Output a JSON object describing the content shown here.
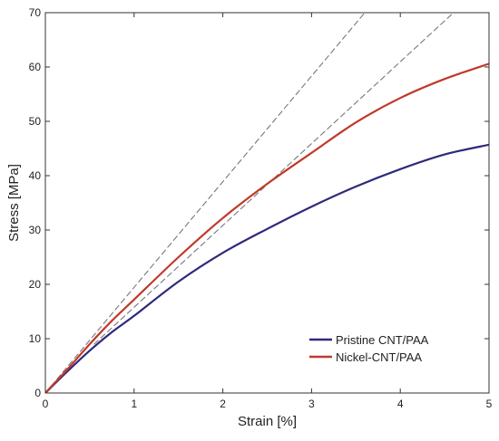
{
  "chart_data": {
    "type": "line",
    "title": "",
    "xlabel": "Strain [%]",
    "ylabel": "Stress [MPa]",
    "xlim": [
      0,
      5
    ],
    "ylim": [
      0,
      70
    ],
    "xticks": [
      0,
      1,
      2,
      3,
      4,
      5
    ],
    "yticks": [
      0,
      10,
      20,
      30,
      40,
      50,
      60,
      70
    ],
    "grid": false,
    "legend_position": "bottom-right",
    "series": [
      {
        "name": "Pristine CNT/PAA",
        "color": "#2e2a7a",
        "style": "solid",
        "x": [
          0,
          0.25,
          0.5,
          0.75,
          1.0,
          1.5,
          2.0,
          2.5,
          3.0,
          3.5,
          4.0,
          4.5,
          5.0
        ],
        "y": [
          0,
          4.0,
          7.8,
          11.2,
          14.2,
          20.5,
          25.8,
          30.2,
          34.3,
          38.0,
          41.2,
          43.9,
          45.7
        ]
      },
      {
        "name": "Nickel-CNT/PAA",
        "color": "#c0392b",
        "style": "solid",
        "x": [
          0,
          0.25,
          0.5,
          0.75,
          1.0,
          1.5,
          2.0,
          2.5,
          3.0,
          3.5,
          4.0,
          4.5,
          5.0
        ],
        "y": [
          0,
          4.4,
          9.0,
          13.3,
          17.2,
          25.0,
          32.2,
          38.5,
          44.2,
          49.8,
          54.3,
          57.8,
          60.6
        ]
      },
      {
        "name": "",
        "color": "#777777",
        "style": "dashed",
        "x": [
          0,
          3.6
        ],
        "y": [
          0,
          70
        ]
      },
      {
        "name": "",
        "color": "#777777",
        "style": "dashed",
        "x": [
          0.55,
          4.6
        ],
        "y": [
          9.0,
          70
        ]
      }
    ]
  }
}
